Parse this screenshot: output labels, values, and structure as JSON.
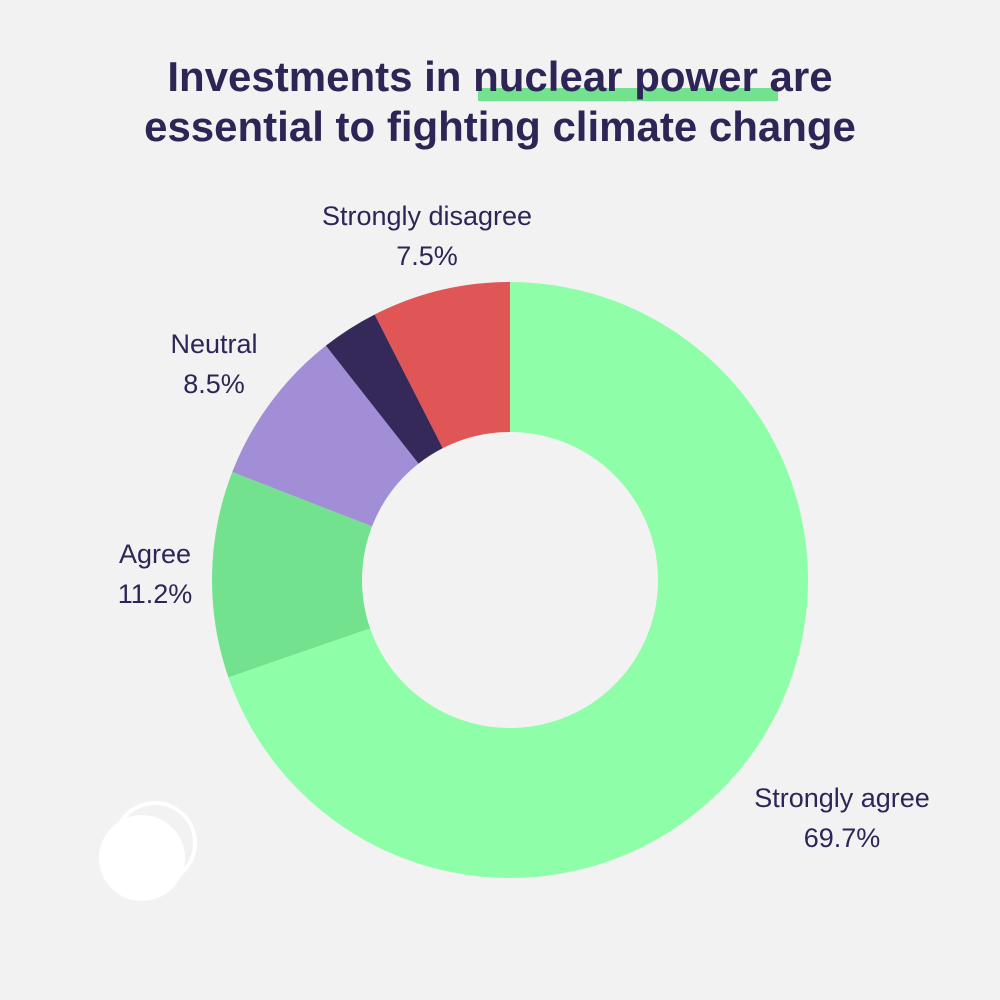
{
  "chart_data": {
    "type": "donut",
    "title": "Investments in nuclear power are essential to fighting climate change",
    "categories": [
      "Strongly agree",
      "Agree",
      "Neutral",
      null,
      "Strongly disagree"
    ],
    "values": [
      69.7,
      11.2,
      8.5,
      3.1,
      7.5
    ],
    "value_labels": [
      "69.7%",
      "11.2%",
      "8.5%",
      null,
      "7.5%"
    ],
    "colors": [
      "#8effa8",
      "#72e28f",
      "#a28ed6",
      "#35295a",
      "#e05555"
    ]
  }
}
